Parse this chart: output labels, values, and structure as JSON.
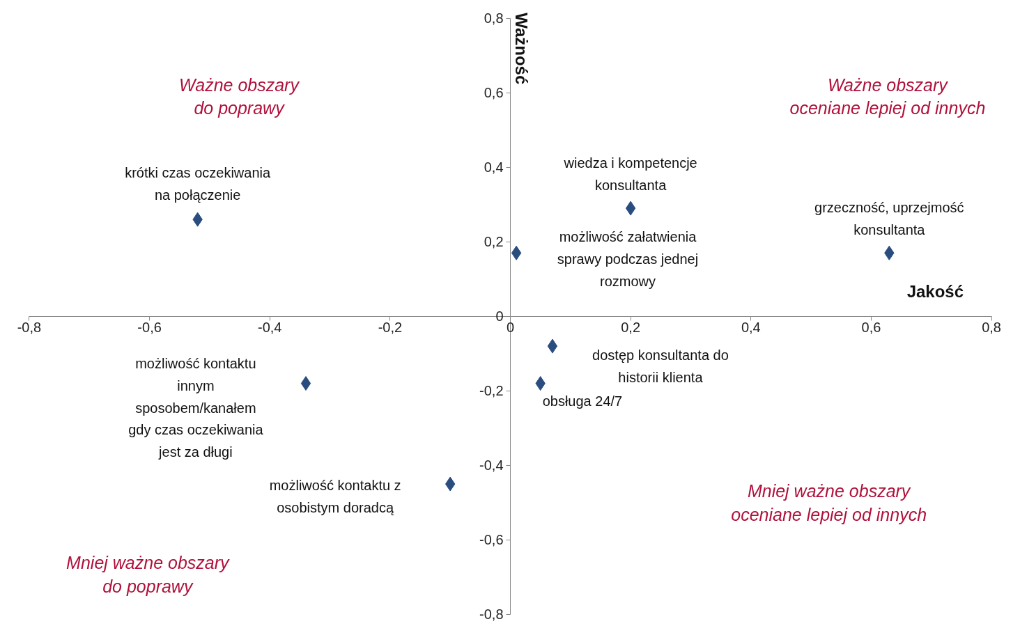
{
  "chart_data": {
    "type": "scatter",
    "xlabel": "Jakość",
    "ylabel": "Ważność",
    "x": [
      -0.52,
      0.2,
      0.01,
      0.63,
      0.07,
      0.05,
      -0.34,
      -0.1
    ],
    "series": [
      {
        "color": "#2a4d80",
        "values": [
          0.26,
          0.29,
          0.17,
          0.17,
          -0.08,
          -0.18,
          -0.18,
          -0.45
        ]
      }
    ],
    "marker": "diamond",
    "grid": false,
    "xlim": [
      -0.8,
      0.8
    ],
    "ylim": [
      -0.8,
      0.8
    ],
    "xticks": [
      {
        "value": -0.8,
        "label": "-0,8"
      },
      {
        "value": -0.6,
        "label": "-0,6"
      },
      {
        "value": -0.4,
        "label": "-0,4"
      },
      {
        "value": -0.2,
        "label": "-0,2"
      },
      0,
      {
        "value": 0.2,
        "label": "0,2"
      },
      {
        "value": 0.4,
        "label": "0,4"
      },
      {
        "value": 0.6,
        "label": "0,6"
      },
      {
        "value": 0.8,
        "label": "0,8"
      }
    ],
    "yticks": [
      {
        "value": -0.8,
        "label": "-0,8"
      },
      {
        "value": -0.6,
        "label": "-0,6"
      },
      {
        "value": -0.4,
        "label": "-0,4"
      },
      {
        "value": -0.2,
        "label": "-0,2"
      },
      0,
      {
        "value": 0.2,
        "label": "0,2"
      },
      {
        "value": 0.4,
        "label": "0,4"
      },
      {
        "value": 0.6,
        "label": "0,6"
      },
      {
        "value": 0.8,
        "label": "0,8"
      }
    ],
    "annotations": [
      {
        "text": "krótki czas oczekiwania\nna połączenie",
        "x": -0.52,
        "y": 0.26
      },
      {
        "text": "wiedza i kompetencje\nkonsultanta",
        "x": 0.2,
        "y": 0.29
      },
      {
        "text": "grzeczność, uprzejmość\nkonsultanta",
        "x": 0.63,
        "y": 0.17
      },
      {
        "text": "obsługa 24/7",
        "x": 0.05,
        "y": -0.18
      },
      "możliwość załatwienia\nsprawy podczas jednej\nrozmowy",
      "dostęp konsultanta do\nhistorii klienta",
      "możliwość kontaktu\ninnym\nsposobem/kanałem\ngdy czas oczekiwania\njest za długi",
      "możliwość kontaktu z\nosobistym doradcą",
      "Ważne obszary\ndo poprawy",
      "Ważne obszary\noceniane lepiej od innych",
      "Mniej ważne obszary\noceniane lepiej od innych",
      "Mniej ważne obszary\ndo poprawy"
    ]
  }
}
